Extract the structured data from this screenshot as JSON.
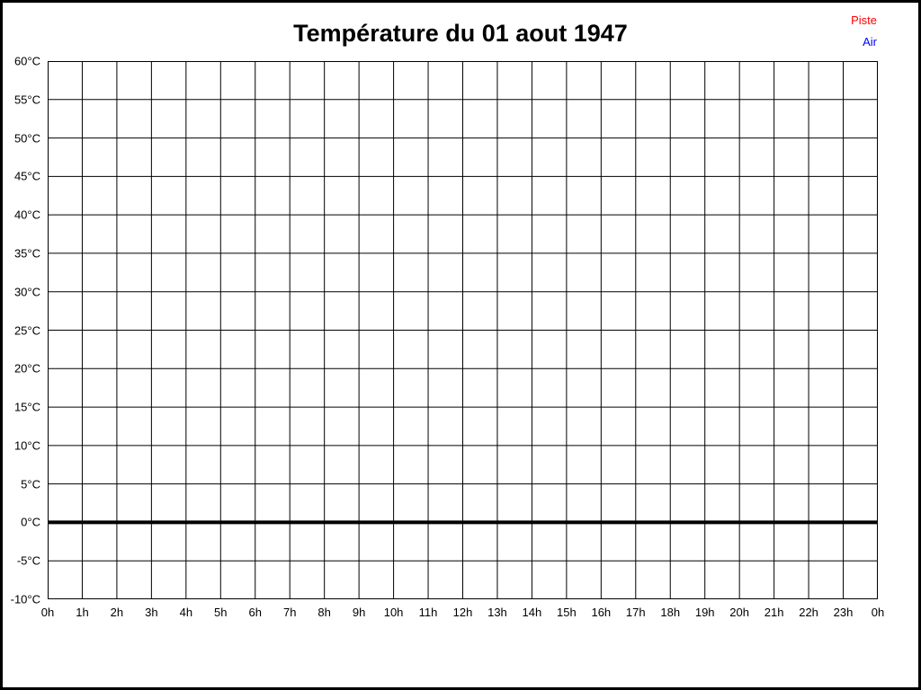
{
  "page": {
    "title": "Température du 01 aout 1947"
  },
  "chart_data": {
    "type": "line",
    "title": "Température du 01 aout 1947",
    "xlabel": "",
    "ylabel": "",
    "xlim": [
      0,
      24
    ],
    "ylim": [
      -10,
      60
    ],
    "grid": true,
    "gridline_color": "#000000",
    "x_ticks": [
      0,
      1,
      2,
      3,
      4,
      5,
      6,
      7,
      8,
      9,
      10,
      11,
      12,
      13,
      14,
      15,
      16,
      17,
      18,
      19,
      20,
      21,
      22,
      23,
      24
    ],
    "x_tick_labels": [
      "0h",
      "1h",
      "2h",
      "3h",
      "4h",
      "5h",
      "6h",
      "7h",
      "8h",
      "9h",
      "10h",
      "11h",
      "12h",
      "13h",
      "14h",
      "15h",
      "16h",
      "17h",
      "18h",
      "19h",
      "20h",
      "21h",
      "22h",
      "23h",
      "0h"
    ],
    "y_ticks": [
      60,
      55,
      50,
      45,
      40,
      35,
      30,
      25,
      20,
      15,
      10,
      5,
      0,
      -5,
      -10
    ],
    "y_tick_labels": [
      "60°C",
      "55°C",
      "50°C",
      "45°C",
      "40°C",
      "35°C",
      "30°C",
      "25°C",
      "20°C",
      "15°C",
      "10°C",
      "5°C",
      "0°C",
      "-5°C",
      "-10°C"
    ],
    "zero_line": {
      "value": 0,
      "color": "#000000",
      "stroke_width": 4
    },
    "legend_position": "top-right",
    "series": [
      {
        "name": "Piste",
        "color": "#ff0000",
        "x": [],
        "values": []
      },
      {
        "name": "Air",
        "color": "#0000ff",
        "x": [],
        "values": []
      }
    ]
  }
}
